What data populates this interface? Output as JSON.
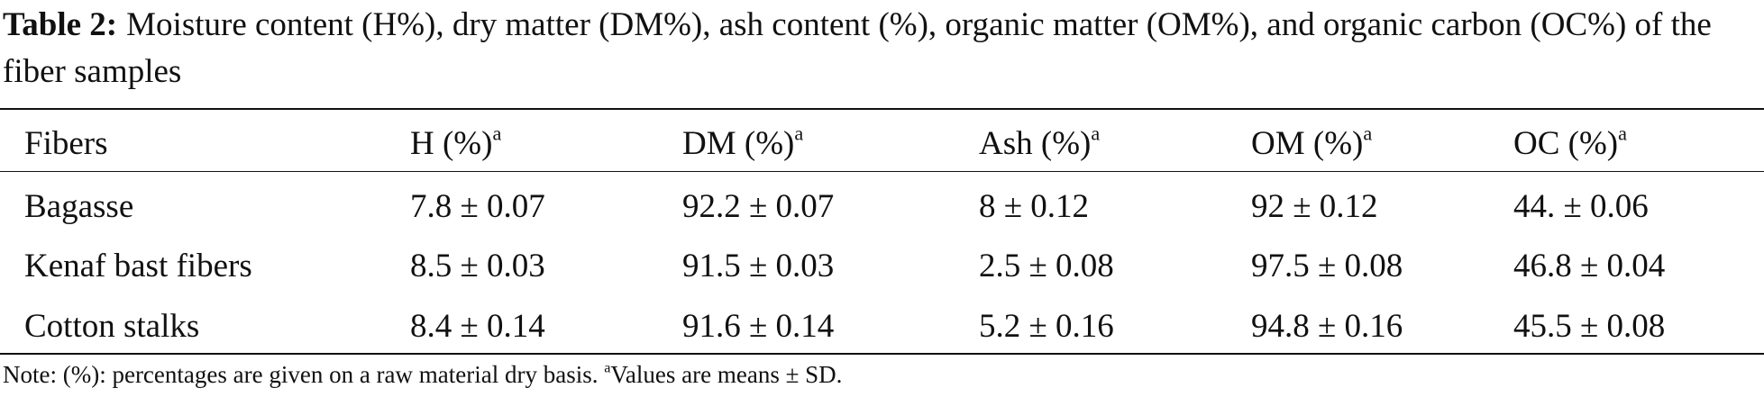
{
  "caption": {
    "label": "Table 2:",
    "text": "Moisture content (H%), dry matter (DM%), ash content (%), organic matter (OM%), and organic carbon (OC%) of the fiber samples"
  },
  "table": {
    "headers": [
      {
        "text": "Fibers"
      },
      {
        "text": "H (%)",
        "sup": "a"
      },
      {
        "text": "DM (%)",
        "sup": "a"
      },
      {
        "text": "Ash (%)",
        "sup": "a"
      },
      {
        "text": "OM (%)",
        "sup": "a"
      },
      {
        "text": "OC (%)",
        "sup": "a"
      }
    ],
    "rows": [
      [
        "Bagasse",
        "7.8 ± 0.07",
        "92.2 ± 0.07",
        "8 ± 0.12",
        "92 ± 0.12",
        "44. ± 0.06"
      ],
      [
        "Kenaf bast fibers",
        "8.5 ± 0.03",
        "91.5 ± 0.03",
        "2.5 ± 0.08",
        "97.5 ± 0.08",
        "46.8 ± 0.04"
      ],
      [
        "Cotton stalks",
        "8.4 ± 0.14",
        "91.6 ± 0.14",
        "5.2 ± 0.16",
        "94.8 ± 0.16",
        "45.5 ± 0.08"
      ]
    ]
  },
  "note": {
    "text": "Note: (%): percentages are given on a raw material dry basis.",
    "sup": "a",
    "tail": "Values are means ± SD."
  }
}
